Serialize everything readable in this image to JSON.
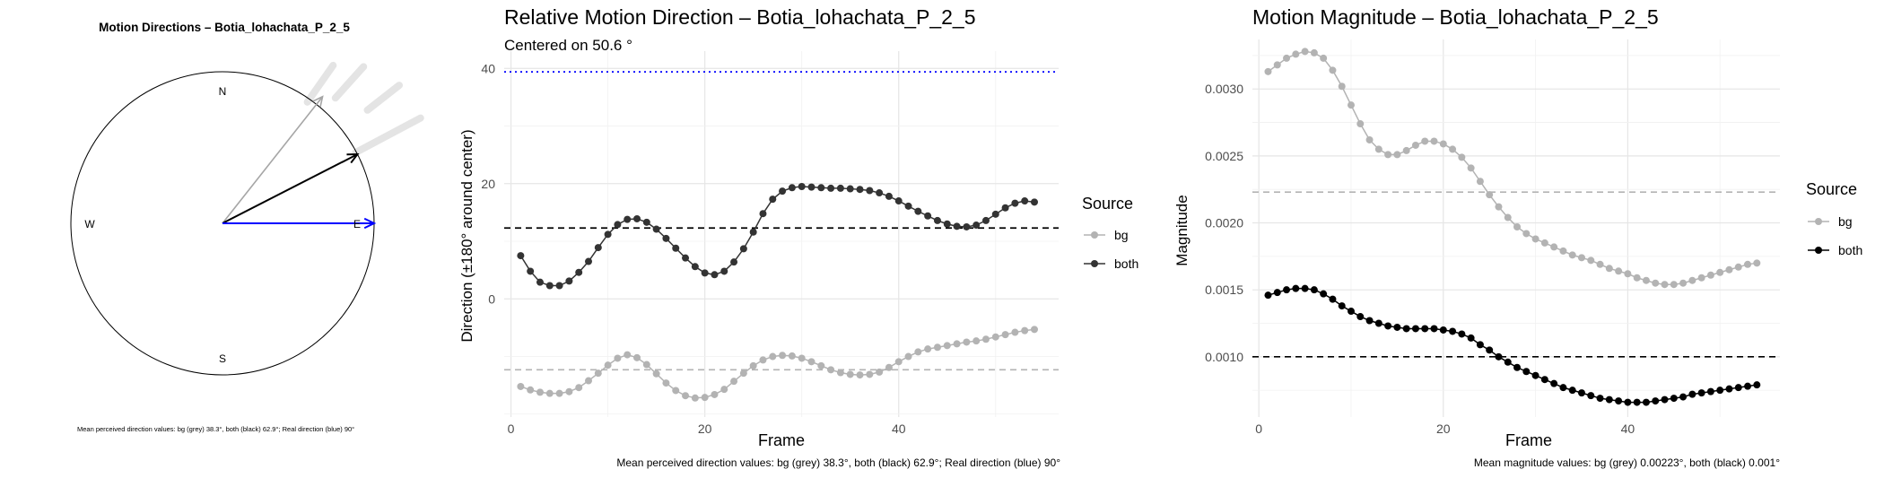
{
  "compass": {
    "title": "Motion Directions – Botia_lohachata_P_2_5",
    "directions": {
      "n": "N",
      "e": "E",
      "s": "S",
      "w": "W"
    },
    "caption": "Mean perceived direction values: bg (grey) 38.3°, both (black) 62.9°; Real direction (blue) 90°",
    "colors": {
      "bg": "#a6a6a6",
      "both": "#000000",
      "real": "#0000ff",
      "trail": "#e4e4e4"
    }
  },
  "chart_data": [
    {
      "type": "line",
      "title": "Relative Motion Direction – Botia_lohachata_P_2_5",
      "subtitle": "Centered on  50.6 °",
      "xlabel": "Frame",
      "ylabel": "Direction (±180° around center)",
      "xlim": [
        -0.7,
        56.5
      ],
      "ylim": [
        -20.5,
        43
      ],
      "xticks": [
        0,
        20,
        40
      ],
      "yticks": [
        0,
        20,
        40
      ],
      "legend_title": "Source",
      "legend_position": "right",
      "caption": "Mean perceived direction values: bg (grey) 38.3°, both (black) 62.9°; Real direction (blue) 90°",
      "hlines": [
        {
          "y": 39.4,
          "color": "#0000ff",
          "style": "dotted"
        },
        {
          "y": 12.3,
          "color": "#000000",
          "style": "dashed"
        },
        {
          "y": -12.3,
          "color": "#b3b3b3",
          "style": "dashed"
        }
      ],
      "x": [
        1,
        2,
        3,
        4,
        5,
        6,
        7,
        8,
        9,
        10,
        11,
        12,
        13,
        14,
        15,
        16,
        17,
        18,
        19,
        20,
        21,
        22,
        23,
        24,
        25,
        26,
        27,
        28,
        29,
        30,
        31,
        32,
        33,
        34,
        35,
        36,
        37,
        38,
        39,
        40,
        41,
        42,
        43,
        44,
        45,
        46,
        47,
        48,
        49,
        50,
        51,
        52,
        53,
        54
      ],
      "series": [
        {
          "name": "bg",
          "color": "#b3b3b3",
          "values": [
            -15.2,
            -15.8,
            -16.2,
            -16.4,
            -16.4,
            -16.1,
            -15.4,
            -14.2,
            -12.9,
            -11.5,
            -10.3,
            -9.7,
            -10.2,
            -11.4,
            -13.0,
            -14.6,
            -15.9,
            -16.8,
            -17.2,
            -17.1,
            -16.6,
            -15.7,
            -14.3,
            -12.9,
            -11.6,
            -10.6,
            -10.0,
            -9.8,
            -9.9,
            -10.3,
            -10.9,
            -11.6,
            -12.3,
            -12.8,
            -13.1,
            -13.2,
            -13.1,
            -12.7,
            -11.9,
            -10.9,
            -10.0,
            -9.2,
            -8.7,
            -8.4,
            -8.1,
            -7.8,
            -7.5,
            -7.3,
            -7.0,
            -6.6,
            -6.2,
            -5.8,
            -5.5,
            -5.3
          ]
        },
        {
          "name": "both",
          "color": "#333333",
          "values": [
            7.5,
            4.8,
            2.9,
            2.3,
            2.3,
            3.1,
            4.6,
            6.5,
            8.9,
            11.2,
            12.9,
            13.8,
            13.9,
            13.3,
            12.1,
            10.5,
            8.8,
            7.1,
            5.6,
            4.5,
            4.2,
            4.8,
            6.4,
            8.7,
            11.6,
            14.8,
            17.3,
            18.7,
            19.3,
            19.5,
            19.4,
            19.3,
            19.2,
            19.2,
            19.1,
            19.0,
            18.8,
            18.4,
            17.8,
            17.0,
            16.1,
            15.2,
            14.4,
            13.6,
            13.0,
            12.6,
            12.5,
            12.8,
            13.6,
            14.7,
            15.8,
            16.6,
            17.0,
            16.8
          ]
        }
      ]
    },
    {
      "type": "line",
      "title": "Motion Magnitude – Botia_lohachata_P_2_5",
      "xlabel": "Frame",
      "ylabel": "Magnitude",
      "xlim": [
        -0.7,
        56.5
      ],
      "ylim": [
        0.00055,
        0.00337
      ],
      "xticks": [
        0,
        20,
        40
      ],
      "yticks": [
        "0.0010",
        "0.0015",
        "0.0020",
        "0.0025",
        "0.0030"
      ],
      "legend_title": "Source",
      "legend_position": "right",
      "caption": "Mean magnitude values: bg (grey) 0.00223°, both (black) 0.001°",
      "hlines": [
        {
          "y": 0.00223,
          "color": "#b3b3b3",
          "style": "dashed"
        },
        {
          "y": 0.001,
          "color": "#000000",
          "style": "dashed"
        }
      ],
      "x": [
        1,
        2,
        3,
        4,
        5,
        6,
        7,
        8,
        9,
        10,
        11,
        12,
        13,
        14,
        15,
        16,
        17,
        18,
        19,
        20,
        21,
        22,
        23,
        24,
        25,
        26,
        27,
        28,
        29,
        30,
        31,
        32,
        33,
        34,
        35,
        36,
        37,
        38,
        39,
        40,
        41,
        42,
        43,
        44,
        45,
        46,
        47,
        48,
        49,
        50,
        51,
        52,
        53,
        54
      ],
      "series": [
        {
          "name": "bg",
          "color": "#b3b3b3",
          "values": [
            0.00313,
            0.00318,
            0.00323,
            0.00326,
            0.00328,
            0.00327,
            0.00323,
            0.00314,
            0.00302,
            0.00288,
            0.00274,
            0.00262,
            0.00255,
            0.00251,
            0.00251,
            0.00254,
            0.00258,
            0.00261,
            0.00261,
            0.00259,
            0.00255,
            0.00249,
            0.00241,
            0.00231,
            0.00221,
            0.00212,
            0.00204,
            0.00197,
            0.00192,
            0.00188,
            0.00185,
            0.00182,
            0.00179,
            0.00176,
            0.00174,
            0.00172,
            0.00169,
            0.00166,
            0.00164,
            0.00162,
            0.00159,
            0.00157,
            0.00155,
            0.00154,
            0.00154,
            0.00155,
            0.00157,
            0.00159,
            0.00161,
            0.00163,
            0.00165,
            0.00167,
            0.00169,
            0.0017
          ]
        },
        {
          "name": "both",
          "color": "#000000",
          "values": [
            0.00146,
            0.00148,
            0.0015,
            0.00151,
            0.00151,
            0.0015,
            0.00147,
            0.00143,
            0.00138,
            0.00134,
            0.0013,
            0.00127,
            0.00125,
            0.00123,
            0.00122,
            0.00121,
            0.00121,
            0.00121,
            0.00121,
            0.0012,
            0.00119,
            0.00117,
            0.00114,
            0.00109,
            0.00105,
            0.001,
            0.00096,
            0.00092,
            0.00089,
            0.00086,
            0.00083,
            0.0008,
            0.00077,
            0.00075,
            0.00073,
            0.00071,
            0.00069,
            0.00068,
            0.00067,
            0.00066,
            0.00066,
            0.00066,
            0.00067,
            0.00068,
            0.00069,
            0.0007,
            0.00072,
            0.00073,
            0.00074,
            0.00075,
            0.00076,
            0.00077,
            0.00078,
            0.00079
          ]
        }
      ]
    }
  ]
}
